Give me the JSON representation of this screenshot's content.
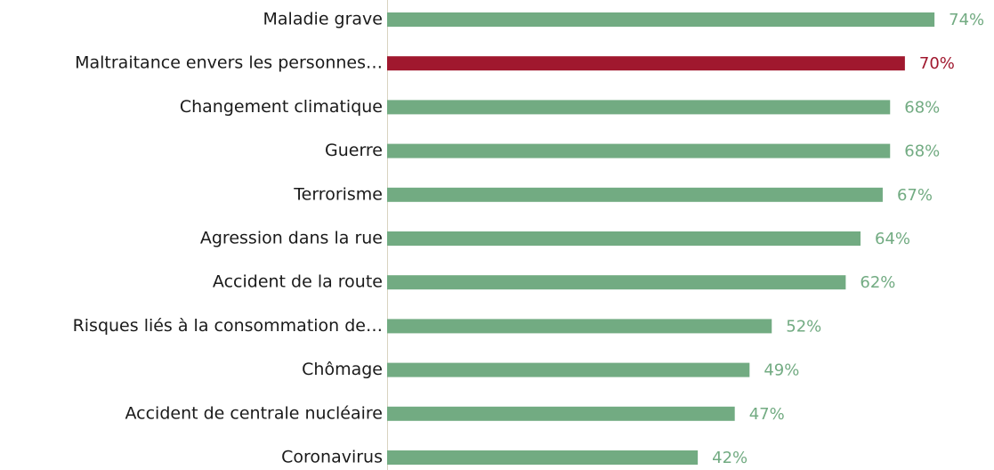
{
  "chart_data": {
    "type": "bar",
    "orientation": "horizontal",
    "categories": [
      "Maladie grave",
      "Maltraitance envers les personnes…",
      "Changement climatique",
      "Guerre",
      "Terrorisme",
      "Agression dans la rue",
      "Accident de la route",
      "Risques liés à la consommation de…",
      "Chômage ",
      "Accident de centrale nucléaire",
      "Coronavirus"
    ],
    "values": [
      74,
      70,
      68,
      68,
      67,
      64,
      62,
      52,
      49,
      47,
      42
    ],
    "value_labels": [
      "74%",
      "70%",
      "68%",
      "68%",
      "67%",
      "64%",
      "62%",
      "52%",
      "49%",
      "47%",
      "42%"
    ],
    "colors": [
      "#72ab82",
      "#a0182e",
      "#72ab82",
      "#72ab82",
      "#72ab82",
      "#72ab82",
      "#72ab82",
      "#72ab82",
      "#72ab82",
      "#72ab82",
      "#72ab82"
    ]
  }
}
